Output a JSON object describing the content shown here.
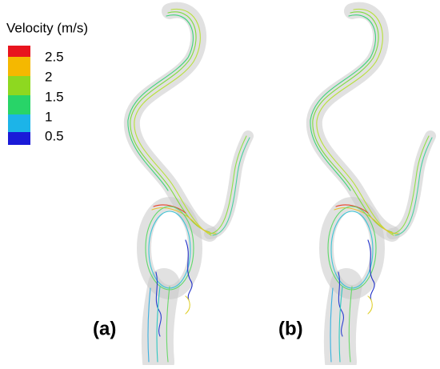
{
  "legend": {
    "title": "Velocity (m/s)",
    "labels": [
      "2.5",
      "2",
      "1.5",
      "1",
      "0.5"
    ]
  },
  "panels": [
    {
      "label": "(a)"
    },
    {
      "label": "(b)"
    }
  ]
}
